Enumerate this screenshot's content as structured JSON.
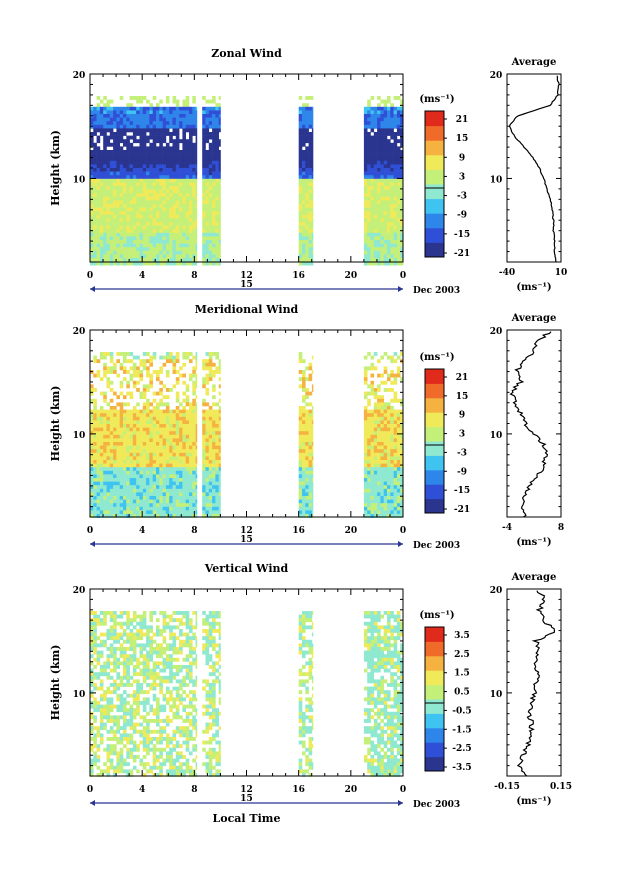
{
  "chart_data": [
    {
      "type": "heatmap",
      "title": "Zonal Wind",
      "xlabel": "",
      "ylabel": "Height (km)",
      "x_ticks": [
        "0",
        "4",
        "8",
        "12",
        "16",
        "20",
        "0"
      ],
      "date_tick": "15",
      "date_label": "Dec 2003",
      "ylim": [
        2,
        20
      ],
      "y_ticks": [
        "20",
        "10"
      ],
      "colorbar": {
        "unit": "(ms⁻¹)",
        "ticks": [
          "21",
          "15",
          "9",
          "3",
          "-3",
          "-9",
          "-15",
          "-21"
        ],
        "range": [
          -24,
          24
        ]
      },
      "data_time_ranges": [
        [
          0,
          8.2
        ],
        [
          8.6,
          10
        ],
        [
          16,
          17.1
        ],
        [
          21,
          24
        ]
      ],
      "average": {
        "title": "Average",
        "xlabel": "(ms⁻¹)",
        "x_ticks": [
          "-40",
          "10"
        ],
        "y_ticks": [
          "20",
          "10"
        ],
        "xlim": [
          -40,
          10
        ],
        "heights": [
          2,
          3,
          4,
          5,
          6,
          7,
          8,
          9,
          10,
          11,
          12,
          13,
          14,
          15,
          16,
          17,
          18,
          19,
          20
        ],
        "values": [
          5,
          4,
          4,
          3,
          3,
          2,
          0,
          -3,
          -6,
          -10,
          -16,
          -24,
          -33,
          -38,
          -30,
          0,
          7,
          8,
          6
        ]
      }
    },
    {
      "type": "heatmap",
      "title": "Meridional Wind",
      "xlabel": "",
      "ylabel": "Height (km)",
      "x_ticks": [
        "0",
        "4",
        "8",
        "12",
        "16",
        "20",
        "0"
      ],
      "date_tick": "15",
      "date_label": "Dec 2003",
      "ylim": [
        2,
        20
      ],
      "y_ticks": [
        "20",
        "10"
      ],
      "colorbar": {
        "unit": "(ms⁻¹)",
        "ticks": [
          "21",
          "15",
          "9",
          "3",
          "-3",
          "-9",
          "-15",
          "-21"
        ],
        "range": [
          -24,
          24
        ]
      },
      "data_time_ranges": [
        [
          0,
          8.2
        ],
        [
          8.6,
          10
        ],
        [
          16,
          17.1
        ],
        [
          21,
          24
        ]
      ],
      "average": {
        "title": "Average",
        "xlabel": "(ms⁻¹)",
        "x_ticks": [
          "-4",
          "8"
        ],
        "y_ticks": [
          "20",
          "10"
        ],
        "xlim": [
          -4,
          8
        ],
        "heights": [
          2,
          3,
          4,
          5,
          6,
          7,
          8,
          9,
          10,
          11,
          12,
          13,
          14,
          15,
          16,
          17,
          18,
          19,
          20
        ],
        "values": [
          0,
          -1,
          0,
          1,
          3,
          4,
          5,
          4,
          2,
          0,
          -1,
          -2,
          -3,
          -1,
          -2,
          0,
          2,
          3,
          6
        ]
      }
    },
    {
      "type": "heatmap",
      "title": "Vertical Wind",
      "xlabel": "Local Time",
      "ylabel": "Height (km)",
      "x_ticks": [
        "0",
        "4",
        "8",
        "12",
        "16",
        "20",
        "0"
      ],
      "date_tick": "15",
      "date_label": "Dec 2003",
      "ylim": [
        2,
        20
      ],
      "y_ticks": [
        "20",
        "10"
      ],
      "colorbar": {
        "unit": "(ms⁻¹)",
        "ticks": [
          "3.5",
          "2.5",
          "1.5",
          "0.5",
          "-0.5",
          "-1.5",
          "-2.5",
          "-3.5"
        ],
        "range": [
          -4,
          4
        ]
      },
      "data_time_ranges": [
        [
          0,
          8.2
        ],
        [
          8.6,
          10
        ],
        [
          16,
          17.1
        ],
        [
          21,
          24
        ]
      ],
      "average": {
        "title": "Average",
        "xlabel": "(ms⁻¹)",
        "x_ticks": [
          "-0.15",
          "0.15"
        ],
        "y_ticks": [
          "20",
          "10"
        ],
        "xlim": [
          -0.15,
          0.15
        ],
        "heights": [
          2,
          3,
          4,
          5,
          6,
          7,
          8,
          9,
          10,
          11,
          12,
          13,
          14,
          15,
          16,
          17,
          18,
          19,
          20
        ],
        "values": [
          -0.05,
          -0.08,
          -0.06,
          -0.03,
          -0.02,
          -0.01,
          -0.03,
          -0.01,
          0.0,
          0.01,
          0.02,
          0.0,
          0.03,
          0.01,
          0.12,
          0.05,
          0.03,
          0.06,
          0.02
        ]
      }
    }
  ],
  "colors": {
    "palette": [
      "#2a3590",
      "#2f4fd6",
      "#2f86ea",
      "#3fc3f0",
      "#8fe8d0",
      "#c4f07a",
      "#f0ea5a",
      "#f6b241",
      "#f06a2a",
      "#e02b1c"
    ]
  }
}
